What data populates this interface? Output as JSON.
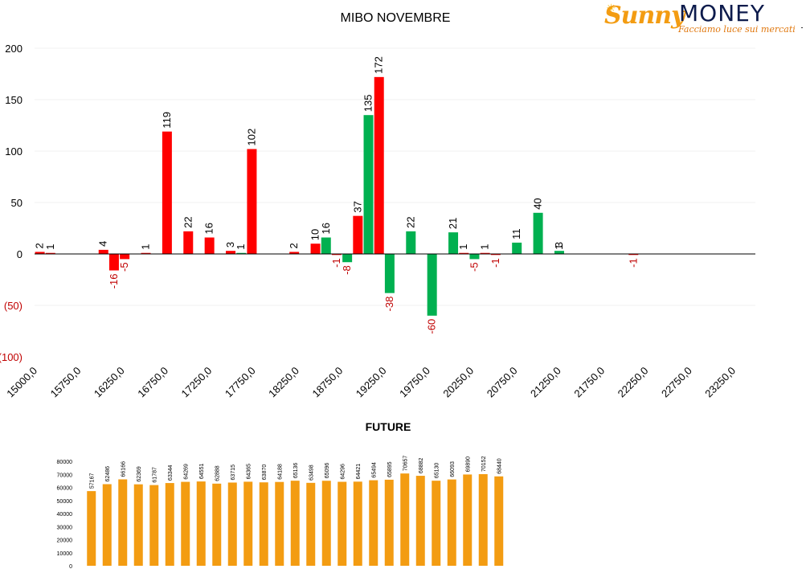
{
  "brand": {
    "name_part1": "Sunny",
    "name_part2": "MONEY",
    "tagline": "Facciamo luce sui mercati"
  },
  "chart_data": [
    {
      "type": "bar",
      "title": "MIBO NOVEMBRE",
      "xlabel": "",
      "ylabel": "",
      "x": [
        15000,
        15125,
        15250,
        15375,
        15500,
        15625,
        15750,
        15875,
        16000,
        16125,
        16250,
        16375,
        16500,
        16625,
        16750,
        16875,
        17000,
        17125,
        17250,
        17375,
        17500,
        17625,
        17750,
        17875,
        18000,
        18125,
        18250,
        18375,
        18500,
        18625,
        18750,
        18875,
        19000,
        19125,
        19250,
        19375,
        19500,
        19625,
        19750,
        19875,
        20000,
        20125,
        20250,
        20375,
        20500,
        20625,
        20750,
        20875,
        21000,
        21125,
        21250,
        21375,
        21500,
        21625,
        21750,
        21875,
        22000,
        22125,
        22250,
        22375,
        22500,
        22625,
        22750,
        22875,
        23000,
        23125,
        23250,
        23375
      ],
      "tick_labels": [
        "15000,0",
        "15750,0",
        "16250,0",
        "16750,0",
        "17250,0",
        "17750,0",
        "18250,0",
        "18750,0",
        "19250,0",
        "19750,0",
        "20250,0",
        "20750,0",
        "21250,0",
        "21750,0",
        "22250,0",
        "22750,0",
        "23250,0"
      ],
      "ylim": [
        -100,
        200
      ],
      "yticks": [
        "200",
        "150",
        "100",
        "50",
        "0",
        "(50)",
        "(100)"
      ],
      "grid": true,
      "colors": {
        "red_series": "#ff0000",
        "green_series": "#00b050",
        "negative_label": "#c00000"
      },
      "series": [
        {
          "values": [
            2,
            1,
            null,
            null,
            null,
            null,
            4,
            -16,
            -5,
            null,
            1,
            null,
            119,
            null,
            22,
            null,
            16,
            null,
            3,
            null,
            102,
            null,
            null,
            null,
            2,
            null,
            10,
            null,
            -1,
            null,
            37,
            null,
            172,
            null,
            null,
            null,
            null,
            null,
            null,
            null,
            1,
            null,
            1,
            -1,
            null,
            null,
            null,
            null,
            null,
            1,
            null,
            null,
            null,
            null,
            null,
            null,
            -1,
            null,
            null,
            null,
            null,
            null,
            null,
            null,
            null,
            null,
            null,
            null
          ]
        },
        {
          "values": [
            null,
            null,
            null,
            null,
            null,
            null,
            null,
            null,
            null,
            null,
            null,
            null,
            null,
            null,
            null,
            null,
            null,
            null,
            null,
            1,
            null,
            null,
            null,
            null,
            null,
            null,
            null,
            16,
            null,
            -8,
            null,
            135,
            null,
            -38,
            null,
            22,
            null,
            -60,
            null,
            21,
            null,
            -5,
            null,
            null,
            null,
            11,
            null,
            40,
            null,
            3,
            null,
            null,
            null,
            null,
            null,
            null,
            null,
            null,
            null,
            null,
            null,
            null,
            null,
            null,
            null,
            null,
            null,
            null
          ]
        }
      ]
    },
    {
      "type": "bar",
      "title": "FUTURE",
      "xlabel": "",
      "ylabel": "",
      "ylim": [
        0,
        80000
      ],
      "yticks": [
        "80000",
        "70000",
        "60000",
        "50000",
        "40000",
        "30000",
        "20000",
        "10000",
        "0"
      ],
      "grid": false,
      "color": "#f39c12",
      "values": [
        57167,
        62486,
        66166,
        62369,
        61787,
        63344,
        64269,
        64551,
        62888,
        63715,
        64365,
        63870,
        64188,
        65136,
        63498,
        65096,
        64296,
        64421,
        65494,
        65895,
        70657,
        68882,
        65130,
        66093,
        69890,
        70152,
        68440
      ]
    }
  ]
}
